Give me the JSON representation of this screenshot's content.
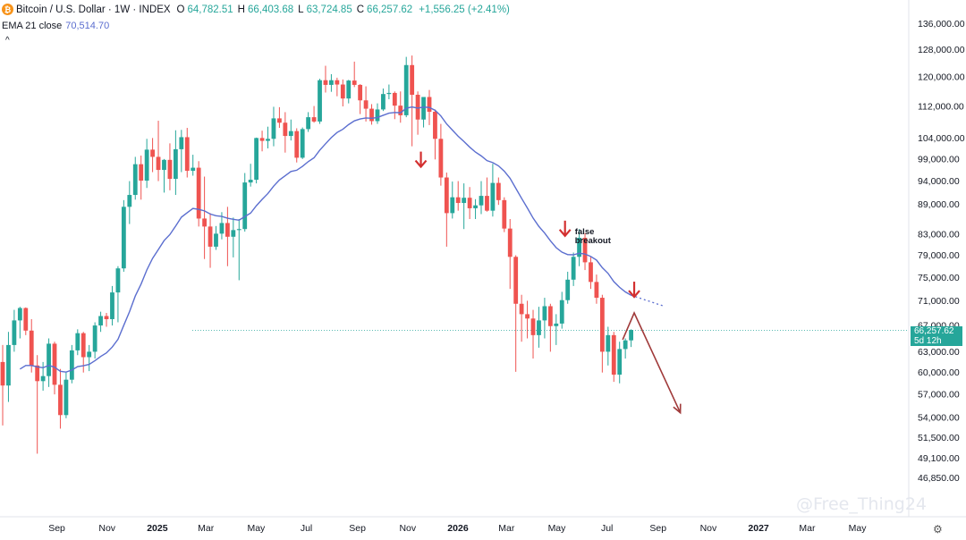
{
  "header": {
    "symbol": "Bitcoin / U.S. Dollar · 1W · INDEX",
    "open_label": "O",
    "open": "64,782.51",
    "high_label": "H",
    "high": "66,403.68",
    "low_label": "L",
    "low": "63,724.85",
    "close_label": "C",
    "close": "66,257.62",
    "change": "+1,556.25 (+2.41%)",
    "ema_label": "EMA 21 close",
    "ema_value": "70,514.70",
    "collapse_icon": "chevron-up-icon"
  },
  "price_tag": {
    "price": "66,257.62",
    "countdown": "5d 12h"
  },
  "watermark": "@Free_Thing24",
  "colors": {
    "up": "#26a69a",
    "down": "#ef5350",
    "ema": "#5b6ecf",
    "arrow": "#d32f2f",
    "projection": "#a03a3a"
  },
  "chart_data": {
    "type": "candlestick",
    "interval": "1W",
    "y_scale": "log",
    "y_range": [
      45500,
      140000
    ],
    "x_range": [
      "2024-06-24",
      "2027-06-28"
    ],
    "y_ticks": [
      "136,000.00",
      "128,000.00",
      "120,000.00",
      "112,000.00",
      "104,000.00",
      "99,000.00",
      "94,000.00",
      "89,000.00",
      "83,000.00",
      "79,000.00",
      "75,000.00",
      "71,000.00",
      "67,000.00",
      "63,000.00",
      "60,000.00",
      "57,000.00",
      "54,000.00",
      "51,500.00",
      "49,100.00",
      "46,850.00"
    ],
    "x_ticks": [
      {
        "label": "Sep",
        "date": "2024-09-01"
      },
      {
        "label": "Nov",
        "date": "2024-11-01"
      },
      {
        "label": "2025",
        "date": "2025-01-01",
        "bold": true
      },
      {
        "label": "Mar",
        "date": "2025-03-01"
      },
      {
        "label": "May",
        "date": "2025-05-01"
      },
      {
        "label": "Jul",
        "date": "2025-07-01"
      },
      {
        "label": "Sep",
        "date": "2025-09-01"
      },
      {
        "label": "Nov",
        "date": "2025-11-01"
      },
      {
        "label": "2026",
        "date": "2026-01-01",
        "bold": true
      },
      {
        "label": "Mar",
        "date": "2026-03-01"
      },
      {
        "label": "May",
        "date": "2026-05-01"
      },
      {
        "label": "Jul",
        "date": "2026-07-01"
      },
      {
        "label": "Sep",
        "date": "2026-09-01"
      },
      {
        "label": "Nov",
        "date": "2026-11-01"
      },
      {
        "label": "2027",
        "date": "2027-01-01",
        "bold": true
      },
      {
        "label": "Mar",
        "date": "2027-03-01"
      },
      {
        "label": "May",
        "date": "2027-05-01"
      }
    ],
    "first_candle_date": "2024-06-24",
    "candles_ohlc": [
      [
        61500,
        64000,
        53000,
        58200
      ],
      [
        58200,
        66000,
        56000,
        64000
      ],
      [
        64000,
        69500,
        63000,
        67800
      ],
      [
        67800,
        70000,
        65000,
        69800
      ],
      [
        69800,
        69900,
        65500,
        66200
      ],
      [
        66200,
        68000,
        60000,
        61000
      ],
      [
        61000,
        62500,
        49600,
        58800
      ],
      [
        58800,
        61500,
        57500,
        59500
      ],
      [
        59500,
        65000,
        58000,
        64200
      ],
      [
        64200,
        64500,
        57000,
        58300
      ],
      [
        58300,
        60500,
        52600,
        54300
      ],
      [
        54300,
        60000,
        53900,
        59000
      ],
      [
        59000,
        64000,
        58500,
        63200
      ],
      [
        63200,
        66400,
        62500,
        65800
      ],
      [
        65800,
        66000,
        60000,
        62200
      ],
      [
        62200,
        64000,
        60200,
        63000
      ],
      [
        63000,
        67500,
        62000,
        67000
      ],
      [
        67000,
        69200,
        66000,
        68500
      ],
      [
        68500,
        69000,
        66800,
        68000
      ],
      [
        68000,
        73500,
        67000,
        72400
      ],
      [
        72400,
        77000,
        67500,
        76600
      ],
      [
        76600,
        89900,
        76000,
        88500
      ],
      [
        88500,
        94000,
        85000,
        91000
      ],
      [
        91000,
        99500,
        90000,
        97800
      ],
      [
        97800,
        99800,
        90000,
        94100
      ],
      [
        94100,
        103800,
        92500,
        101200
      ],
      [
        101200,
        104000,
        96000,
        99500
      ],
      [
        99500,
        108300,
        94000,
        96500
      ],
      [
        96500,
        99000,
        91500,
        98800
      ],
      [
        98800,
        102700,
        92000,
        94500
      ],
      [
        94500,
        105900,
        91000,
        101300
      ],
      [
        101300,
        106000,
        96000,
        104200
      ],
      [
        104200,
        106500,
        94800,
        96300
      ],
      [
        96300,
        100000,
        95200,
        97000
      ],
      [
        97000,
        98500,
        84500,
        86100
      ],
      [
        86100,
        95000,
        78300,
        84500
      ],
      [
        84500,
        87200,
        76700,
        80600
      ],
      [
        80600,
        84600,
        80000,
        83100
      ],
      [
        83100,
        87400,
        82000,
        85200
      ],
      [
        85200,
        88500,
        77000,
        82500
      ],
      [
        82500,
        86300,
        78600,
        83800
      ],
      [
        83800,
        86000,
        74500,
        84000
      ],
      [
        84000,
        95800,
        83500,
        93700
      ],
      [
        93700,
        97900,
        92800,
        94300
      ],
      [
        94300,
        104100,
        93500,
        104000
      ],
      [
        104000,
        105800,
        100800,
        103300
      ],
      [
        103300,
        106800,
        101500,
        103800
      ],
      [
        103800,
        111900,
        102000,
        108900
      ],
      [
        108900,
        111800,
        106500,
        107800
      ],
      [
        107800,
        110500,
        100500,
        104500
      ],
      [
        104500,
        108600,
        103400,
        105700
      ],
      [
        105700,
        106400,
        98200,
        99300
      ],
      [
        99300,
        106600,
        99000,
        106200
      ],
      [
        106200,
        110500,
        105500,
        109200
      ],
      [
        109200,
        112100,
        107800,
        108100
      ],
      [
        108100,
        119500,
        107500,
        119100
      ],
      [
        119100,
        123200,
        115700,
        117800
      ],
      [
        117800,
        120800,
        115900,
        119100
      ],
      [
        119100,
        119800,
        114700,
        117900
      ],
      [
        117900,
        119300,
        112000,
        114100
      ],
      [
        114100,
        119200,
        112800,
        119000
      ],
      [
        119000,
        124400,
        117200,
        117800
      ],
      [
        117800,
        118000,
        110000,
        113600
      ],
      [
        113600,
        117400,
        108100,
        111400
      ],
      [
        111400,
        112600,
        107300,
        108200
      ],
      [
        108200,
        112800,
        107500,
        111200
      ],
      [
        111200,
        116800,
        110800,
        115300
      ],
      [
        115300,
        117900,
        113900,
        115600
      ],
      [
        115600,
        116000,
        108700,
        112200
      ],
      [
        112200,
        116000,
        107800,
        109700
      ],
      [
        109700,
        125800,
        109200,
        123400
      ],
      [
        123400,
        126200,
        102000,
        115100
      ],
      [
        115100,
        116000,
        104800,
        108600
      ],
      [
        108600,
        114000,
        106600,
        114500
      ],
      [
        114500,
        116400,
        107200,
        110600
      ],
      [
        110600,
        111200,
        98900,
        103800
      ],
      [
        103800,
        107500,
        93000,
        94800
      ],
      [
        94800,
        95900,
        80600,
        87200
      ],
      [
        87200,
        93900,
        86100,
        90500
      ],
      [
        90500,
        94000,
        87700,
        89300
      ],
      [
        89300,
        93500,
        84000,
        90400
      ],
      [
        90400,
        92700,
        86000,
        88200
      ],
      [
        88200,
        90100,
        86000,
        88800
      ],
      [
        88800,
        94000,
        87000,
        90800
      ],
      [
        90800,
        94800,
        87500,
        87700
      ],
      [
        87700,
        97900,
        86500,
        93600
      ],
      [
        93600,
        94800,
        88900,
        89900
      ],
      [
        89900,
        90500,
        83400,
        84100
      ],
      [
        84100,
        86000,
        73000,
        78700
      ],
      [
        78700,
        79000,
        60100,
        70500
      ],
      [
        70500,
        72000,
        64500,
        68800
      ],
      [
        68800,
        71000,
        65000,
        68100
      ],
      [
        68100,
        69500,
        62000,
        65500
      ],
      [
        65500,
        70000,
        63600,
        67800
      ],
      [
        67800,
        71500,
        65000,
        70100
      ],
      [
        70100,
        70500,
        63000,
        66900
      ],
      [
        66900,
        68800,
        64000,
        67300
      ],
      [
        67300,
        72500,
        66500,
        71100
      ],
      [
        71100,
        76000,
        70500,
        74600
      ],
      [
        74600,
        79500,
        73500,
        78700
      ],
      [
        78700,
        84000,
        77000,
        82300
      ],
      [
        82300,
        83200,
        76300,
        77700
      ],
      [
        77700,
        78800,
        73000,
        74200
      ],
      [
        74200,
        75500,
        70500,
        71500
      ],
      [
        71500,
        72000,
        60000,
        63000
      ],
      [
        63000,
        66800,
        61000,
        65500
      ],
      [
        65500,
        66000,
        58700,
        59700
      ],
      [
        59700,
        64500,
        58500,
        63400
      ],
      [
        63400,
        65000,
        62000,
        64700
      ],
      [
        64700,
        66400,
        63700,
        66300
      ]
    ],
    "ema21_label": "EMA 21 close",
    "ema21_last": 70514.7,
    "annotations": [
      {
        "type": "down-arrow",
        "date": "2025-11-17",
        "price": 97000
      },
      {
        "type": "down-arrow",
        "date": "2026-05-11",
        "price": 82500
      },
      {
        "type": "text",
        "date": "2026-05-23",
        "price": 83000,
        "text": [
          "false",
          "breakout"
        ]
      },
      {
        "type": "down-arrow",
        "date": "2026-08-03",
        "price": 71500
      },
      {
        "type": "projection",
        "points": [
          [
            "2026-07-20",
            64800
          ],
          [
            "2026-08-03",
            69000
          ],
          [
            "2026-09-28",
            54600
          ]
        ]
      }
    ],
    "current_price_line": 66257.62
  }
}
